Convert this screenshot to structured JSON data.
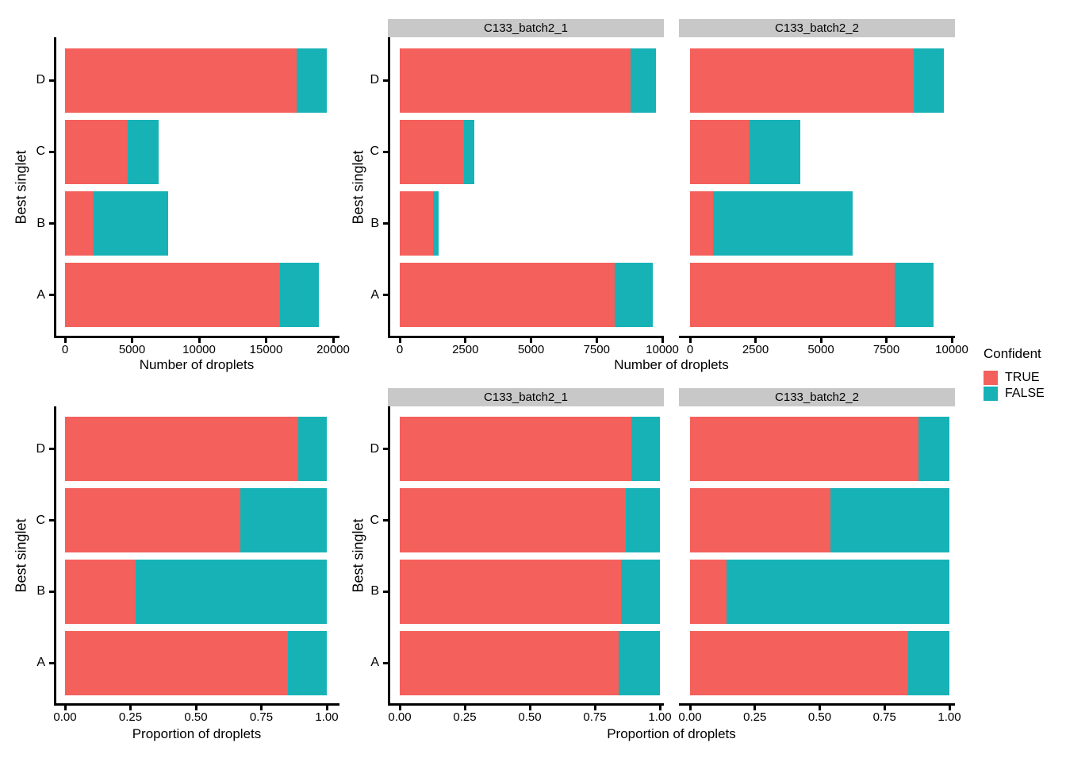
{
  "palette": {
    "true_color": "#F4605C",
    "false_color": "#17B2B6",
    "strip_bg": "#C8C8C8",
    "axis_color": "#000000"
  },
  "legend": {
    "title": "Confident",
    "entries": [
      {
        "label": "TRUE",
        "color": "#F4605C"
      },
      {
        "label": "FALSE",
        "color": "#17B2B6"
      }
    ]
  },
  "y_axis_title": "Best singlet",
  "x_axis_titles": {
    "counts": "Number of droplets",
    "proportion": "Proportion of droplets"
  },
  "facets": [
    "C133_batch2_1",
    "C133_batch2_2"
  ],
  "categories_top_to_bottom": [
    "D",
    "C",
    "B",
    "A"
  ],
  "chart_data": [
    {
      "id": "counts-combined",
      "type": "bar",
      "orientation": "horizontal",
      "stacked": true,
      "facet": null,
      "xlabel": "Number of droplets",
      "ylabel": "Best singlet",
      "categories": [
        "D",
        "C",
        "B",
        "A"
      ],
      "series": [
        {
          "name": "TRUE",
          "values": [
            17300,
            4700,
            2150,
            16050
          ]
        },
        {
          "name": "FALSE",
          "values": [
            2200,
            2300,
            5550,
            2900
          ]
        }
      ],
      "xlim": [
        0,
        20000
      ],
      "xticks": [
        0,
        5000,
        10000,
        15000,
        20000
      ],
      "xtick_labels": [
        "0",
        "5000",
        "10000",
        "15000",
        "20000"
      ]
    },
    {
      "id": "counts-C133_batch2_1",
      "type": "bar",
      "orientation": "horizontal",
      "stacked": true,
      "facet": "C133_batch2_1",
      "xlabel": "Number of droplets",
      "ylabel": "Best singlet",
      "categories": [
        "D",
        "C",
        "B",
        "A"
      ],
      "series": [
        {
          "name": "TRUE",
          "values": [
            8800,
            2450,
            1270,
            8200
          ]
        },
        {
          "name": "FALSE",
          "values": [
            950,
            380,
            210,
            1450
          ]
        }
      ],
      "xlim": [
        0,
        10000
      ],
      "xticks": [
        0,
        2500,
        5000,
        7500,
        10000
      ],
      "xtick_labels": [
        "0",
        "2500",
        "5000",
        "7500",
        "10000"
      ]
    },
    {
      "id": "counts-C133_batch2_2",
      "type": "bar",
      "orientation": "horizontal",
      "stacked": true,
      "facet": "C133_batch2_2",
      "xlabel": "Number of droplets",
      "ylabel": "Best singlet",
      "categories": [
        "D",
        "C",
        "B",
        "A"
      ],
      "series": [
        {
          "name": "TRUE",
          "values": [
            8550,
            2260,
            880,
            7830
          ]
        },
        {
          "name": "FALSE",
          "values": [
            1150,
            1940,
            5320,
            1470
          ]
        }
      ],
      "xlim": [
        0,
        10000
      ],
      "xticks": [
        0,
        2500,
        5000,
        7500,
        10000
      ],
      "xtick_labels": [
        "0",
        "2500",
        "5000",
        "7500",
        "10000"
      ]
    },
    {
      "id": "prop-combined",
      "type": "bar",
      "orientation": "horizontal",
      "stacked": true,
      "facet": null,
      "xlabel": "Proportion of droplets",
      "ylabel": "Best singlet",
      "categories": [
        "D",
        "C",
        "B",
        "A"
      ],
      "series": [
        {
          "name": "TRUE",
          "values": [
            0.89,
            0.67,
            0.27,
            0.85
          ]
        },
        {
          "name": "FALSE",
          "values": [
            0.11,
            0.33,
            0.73,
            0.15
          ]
        }
      ],
      "xlim": [
        0,
        1
      ],
      "xticks": [
        0,
        0.25,
        0.5,
        0.75,
        1
      ],
      "xtick_labels": [
        "0.00",
        "0.25",
        "0.50",
        "0.75",
        "1.00"
      ]
    },
    {
      "id": "prop-C133_batch2_1",
      "type": "bar",
      "orientation": "horizontal",
      "stacked": true,
      "facet": "C133_batch2_1",
      "xlabel": "Proportion of droplets",
      "ylabel": "Best singlet",
      "categories": [
        "D",
        "C",
        "B",
        "A"
      ],
      "series": [
        {
          "name": "TRUE",
          "values": [
            0.89,
            0.87,
            0.85,
            0.84
          ]
        },
        {
          "name": "FALSE",
          "values": [
            0.11,
            0.13,
            0.15,
            0.16
          ]
        }
      ],
      "xlim": [
        0,
        1
      ],
      "xticks": [
        0,
        0.25,
        0.5,
        0.75,
        1
      ],
      "xtick_labels": [
        "0.00",
        "0.25",
        "0.50",
        "0.75",
        "1.00"
      ]
    },
    {
      "id": "prop-C133_batch2_2",
      "type": "bar",
      "orientation": "horizontal",
      "stacked": true,
      "facet": "C133_batch2_2",
      "xlabel": "Proportion of droplets",
      "ylabel": "Best singlet",
      "categories": [
        "D",
        "C",
        "B",
        "A"
      ],
      "series": [
        {
          "name": "TRUE",
          "values": [
            0.88,
            0.54,
            0.14,
            0.84
          ]
        },
        {
          "name": "FALSE",
          "values": [
            0.12,
            0.46,
            0.86,
            0.16
          ]
        }
      ],
      "xlim": [
        0,
        1
      ],
      "xticks": [
        0,
        0.25,
        0.5,
        0.75,
        1
      ],
      "xtick_labels": [
        "0.00",
        "0.25",
        "0.50",
        "0.75",
        "1.00"
      ]
    }
  ]
}
